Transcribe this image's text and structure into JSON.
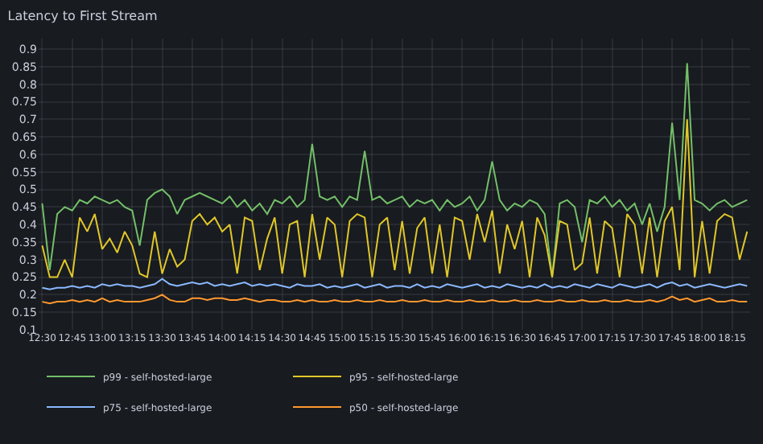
{
  "chart_data": {
    "type": "line",
    "title": "Latency to First Stream",
    "x": [
      12.5,
      12.5625,
      12.625,
      12.6875,
      12.75,
      12.8125,
      12.875,
      12.9375,
      13.0,
      13.0625,
      13.125,
      13.1875,
      13.25,
      13.3125,
      13.375,
      13.4375,
      13.5,
      13.5625,
      13.625,
      13.6875,
      13.75,
      13.8125,
      13.875,
      13.9375,
      14.0,
      14.0625,
      14.125,
      14.1875,
      14.25,
      14.3125,
      14.375,
      14.4375,
      14.5,
      14.5625,
      14.625,
      14.6875,
      14.75,
      14.8125,
      14.875,
      14.9375,
      15.0,
      15.0625,
      15.125,
      15.1875,
      15.25,
      15.3125,
      15.375,
      15.4375,
      15.5,
      15.5625,
      15.625,
      15.6875,
      15.75,
      15.8125,
      15.875,
      15.9375,
      16.0,
      16.0625,
      16.125,
      16.1875,
      16.25,
      16.3125,
      16.375,
      16.4375,
      16.5,
      16.5625,
      16.625,
      16.6875,
      16.75,
      16.8125,
      16.875,
      16.9375,
      17.0,
      17.0625,
      17.125,
      17.1875,
      17.25,
      17.3125,
      17.375,
      17.4375,
      17.5,
      17.5625,
      17.625,
      17.6875,
      17.75,
      17.8125,
      17.875,
      17.9375,
      18.0,
      18.0625,
      18.125,
      18.1875,
      18.25,
      18.3125,
      18.375
    ],
    "series": [
      {
        "name": "p99 - self-hosted-large",
        "color": "#73bf69",
        "values": [
          0.46,
          0.27,
          0.43,
          0.45,
          0.44,
          0.47,
          0.46,
          0.48,
          0.47,
          0.46,
          0.47,
          0.45,
          0.44,
          0.34,
          0.47,
          0.49,
          0.5,
          0.48,
          0.43,
          0.47,
          0.48,
          0.49,
          0.48,
          0.47,
          0.46,
          0.48,
          0.45,
          0.47,
          0.44,
          0.46,
          0.43,
          0.47,
          0.46,
          0.48,
          0.45,
          0.47,
          0.63,
          0.48,
          0.47,
          0.48,
          0.45,
          0.48,
          0.47,
          0.61,
          0.47,
          0.48,
          0.46,
          0.47,
          0.48,
          0.45,
          0.47,
          0.46,
          0.47,
          0.44,
          0.47,
          0.45,
          0.46,
          0.48,
          0.44,
          0.47,
          0.58,
          0.47,
          0.44,
          0.46,
          0.45,
          0.47,
          0.46,
          0.43,
          0.25,
          0.46,
          0.47,
          0.45,
          0.35,
          0.47,
          0.46,
          0.48,
          0.45,
          0.47,
          0.44,
          0.46,
          0.4,
          0.46,
          0.38,
          0.45,
          0.69,
          0.47,
          0.86,
          0.47,
          0.46,
          0.44,
          0.46,
          0.47,
          0.45,
          0.46,
          0.47
        ]
      },
      {
        "name": "p95 - self-hosted-large",
        "color": "#e0c72a",
        "values": [
          0.34,
          0.25,
          0.25,
          0.3,
          0.25,
          0.42,
          0.38,
          0.43,
          0.33,
          0.36,
          0.32,
          0.38,
          0.34,
          0.26,
          0.25,
          0.38,
          0.26,
          0.33,
          0.28,
          0.3,
          0.41,
          0.43,
          0.4,
          0.42,
          0.38,
          0.4,
          0.26,
          0.42,
          0.41,
          0.27,
          0.36,
          0.42,
          0.26,
          0.4,
          0.41,
          0.25,
          0.43,
          0.3,
          0.42,
          0.4,
          0.25,
          0.41,
          0.43,
          0.42,
          0.25,
          0.4,
          0.42,
          0.27,
          0.41,
          0.26,
          0.39,
          0.42,
          0.26,
          0.4,
          0.25,
          0.42,
          0.41,
          0.3,
          0.43,
          0.35,
          0.44,
          0.26,
          0.4,
          0.33,
          0.41,
          0.25,
          0.42,
          0.37,
          0.25,
          0.41,
          0.4,
          0.27,
          0.29,
          0.42,
          0.26,
          0.41,
          0.39,
          0.25,
          0.43,
          0.4,
          0.26,
          0.42,
          0.25,
          0.41,
          0.45,
          0.27,
          0.7,
          0.25,
          0.41,
          0.26,
          0.41,
          0.43,
          0.42,
          0.3,
          0.38
        ]
      },
      {
        "name": "p75 - self-hosted-large",
        "color": "#8ab8ff",
        "values": [
          0.22,
          0.215,
          0.22,
          0.22,
          0.225,
          0.22,
          0.225,
          0.22,
          0.23,
          0.225,
          0.23,
          0.225,
          0.225,
          0.22,
          0.225,
          0.23,
          0.245,
          0.23,
          0.225,
          0.23,
          0.235,
          0.23,
          0.235,
          0.225,
          0.23,
          0.225,
          0.23,
          0.235,
          0.225,
          0.23,
          0.225,
          0.23,
          0.225,
          0.22,
          0.23,
          0.225,
          0.225,
          0.23,
          0.22,
          0.225,
          0.22,
          0.225,
          0.23,
          0.22,
          0.225,
          0.23,
          0.22,
          0.225,
          0.225,
          0.22,
          0.23,
          0.22,
          0.225,
          0.22,
          0.23,
          0.225,
          0.22,
          0.225,
          0.23,
          0.22,
          0.225,
          0.22,
          0.23,
          0.225,
          0.22,
          0.225,
          0.22,
          0.23,
          0.22,
          0.225,
          0.22,
          0.23,
          0.225,
          0.22,
          0.23,
          0.225,
          0.22,
          0.23,
          0.225,
          0.22,
          0.225,
          0.23,
          0.22,
          0.23,
          0.235,
          0.225,
          0.23,
          0.22,
          0.225,
          0.23,
          0.225,
          0.22,
          0.225,
          0.23,
          0.225
        ]
      },
      {
        "name": "p50 - self-hosted-large",
        "color": "#ff9830",
        "values": [
          0.18,
          0.175,
          0.18,
          0.18,
          0.185,
          0.18,
          0.185,
          0.18,
          0.19,
          0.18,
          0.185,
          0.18,
          0.18,
          0.18,
          0.185,
          0.19,
          0.2,
          0.185,
          0.18,
          0.18,
          0.19,
          0.19,
          0.185,
          0.19,
          0.19,
          0.185,
          0.185,
          0.19,
          0.185,
          0.18,
          0.185,
          0.185,
          0.18,
          0.18,
          0.185,
          0.18,
          0.185,
          0.18,
          0.18,
          0.185,
          0.18,
          0.18,
          0.185,
          0.18,
          0.18,
          0.185,
          0.18,
          0.18,
          0.185,
          0.18,
          0.18,
          0.185,
          0.18,
          0.18,
          0.185,
          0.18,
          0.18,
          0.185,
          0.18,
          0.18,
          0.185,
          0.18,
          0.18,
          0.185,
          0.18,
          0.18,
          0.185,
          0.18,
          0.18,
          0.185,
          0.18,
          0.18,
          0.185,
          0.18,
          0.18,
          0.185,
          0.18,
          0.18,
          0.185,
          0.18,
          0.18,
          0.185,
          0.18,
          0.185,
          0.195,
          0.185,
          0.19,
          0.18,
          0.185,
          0.19,
          0.18,
          0.18,
          0.185,
          0.18,
          0.18
        ]
      }
    ],
    "xlim": [
      12.47,
      18.4
    ],
    "xticks": [
      {
        "value": 12.5,
        "label": "12:30"
      },
      {
        "value": 12.75,
        "label": "12:45"
      },
      {
        "value": 13.0,
        "label": "13:00"
      },
      {
        "value": 13.25,
        "label": "13:15"
      },
      {
        "value": 13.5,
        "label": "13:30"
      },
      {
        "value": 13.75,
        "label": "13:45"
      },
      {
        "value": 14.0,
        "label": "14:00"
      },
      {
        "value": 14.25,
        "label": "14:15"
      },
      {
        "value": 14.5,
        "label": "14:30"
      },
      {
        "value": 14.75,
        "label": "14:45"
      },
      {
        "value": 15.0,
        "label": "15:00"
      },
      {
        "value": 15.25,
        "label": "15:15"
      },
      {
        "value": 15.5,
        "label": "15:30"
      },
      {
        "value": 15.75,
        "label": "15:45"
      },
      {
        "value": 16.0,
        "label": "16:00"
      },
      {
        "value": 16.25,
        "label": "16:15"
      },
      {
        "value": 16.5,
        "label": "16:30"
      },
      {
        "value": 16.75,
        "label": "16:45"
      },
      {
        "value": 17.0,
        "label": "17:00"
      },
      {
        "value": 17.25,
        "label": "17:15"
      },
      {
        "value": 17.5,
        "label": "17:30"
      },
      {
        "value": 17.75,
        "label": "17:45"
      },
      {
        "value": 18.0,
        "label": "18:00"
      },
      {
        "value": 18.25,
        "label": "18:15"
      }
    ],
    "ylim": [
      0.1,
      0.93
    ],
    "yticks": [
      0.1,
      0.15,
      0.2,
      0.25,
      0.3,
      0.35,
      0.4,
      0.45,
      0.5,
      0.55,
      0.6,
      0.65,
      0.7,
      0.75,
      0.8,
      0.85,
      0.9
    ],
    "grid": true,
    "legend": "bottom left",
    "marker": "none",
    "line_style": "solid"
  }
}
